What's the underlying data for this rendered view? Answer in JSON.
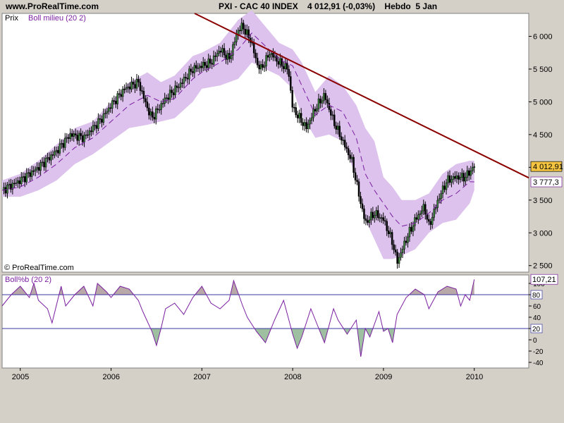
{
  "header": {
    "site": "www.ProRealTime.com",
    "title": "PXI - CAC 40 INDEX    4 012,91 (-0,03%)    Hebdo  5 Jan"
  },
  "colors": {
    "band": "#dcc2ec",
    "middle": "#7a1fa0",
    "trend": "#8b0000",
    "bbp": "#7a1fa0",
    "hline": "#3a3aa0",
    "fill_high": "#b8a8a8",
    "fill_low": "#9ec0a0"
  },
  "chart_data": [
    {
      "type": "candlestick",
      "panel": "price",
      "legend": [
        "Prix",
        "Boll milieu (20 2)"
      ],
      "watermark": "© ProRealTime.com",
      "x_ticks": [
        "2005",
        "2006",
        "2007",
        "2008",
        "2009",
        "2010"
      ],
      "x_range": [
        2004.8,
        2010.6
      ],
      "y_ticks": [
        "6 000",
        "5 500",
        "5 000",
        "4 500",
        "4 000",
        "3 500",
        "3 000",
        "2 500"
      ],
      "y_tick_values": [
        6000,
        5500,
        5000,
        4500,
        4000,
        3500,
        3000,
        2500
      ],
      "ylim": [
        2400,
        6350
      ],
      "last_price_label": "4 012,91",
      "middle_band_label": "3 777,3",
      "price_series": {
        "x": [
          2004.8,
          2005.0,
          2005.2,
          2005.4,
          2005.55,
          2005.7,
          2005.9,
          2006.0,
          2006.15,
          2006.3,
          2006.4,
          2006.45,
          2006.5,
          2006.6,
          2006.75,
          2006.9,
          2007.0,
          2007.1,
          2007.2,
          2007.3,
          2007.4,
          2007.45,
          2007.55,
          2007.6,
          2007.65,
          2007.75,
          2007.85,
          2007.95,
          2008.0,
          2008.05,
          2008.15,
          2008.25,
          2008.35,
          2008.45,
          2008.55,
          2008.65,
          2008.75,
          2008.8,
          2008.9,
          2009.0,
          2009.1,
          2009.15,
          2009.25,
          2009.35,
          2009.45,
          2009.5,
          2009.6,
          2009.7,
          2009.8,
          2009.9,
          2010.0
        ],
        "close": [
          3650,
          3800,
          4000,
          4250,
          4500,
          4450,
          4750,
          4950,
          5200,
          5300,
          4900,
          4750,
          4850,
          5050,
          5250,
          5500,
          5550,
          5600,
          5800,
          5650,
          6100,
          6150,
          5900,
          5600,
          5500,
          5750,
          5600,
          5500,
          4900,
          4800,
          4600,
          4900,
          5100,
          4700,
          4400,
          4100,
          3450,
          3150,
          3300,
          3200,
          2850,
          2550,
          2900,
          3200,
          3400,
          3100,
          3500,
          3800,
          3850,
          3850,
          4012.91
        ]
      },
      "bollinger": {
        "x": [
          2004.8,
          2005.0,
          2005.2,
          2005.4,
          2005.6,
          2005.8,
          2006.0,
          2006.2,
          2006.4,
          2006.55,
          2006.7,
          2006.9,
          2007.0,
          2007.2,
          2007.4,
          2007.55,
          2007.7,
          2007.85,
          2008.0,
          2008.1,
          2008.25,
          2008.4,
          2008.55,
          2008.7,
          2008.8,
          2008.9,
          2009.0,
          2009.1,
          2009.2,
          2009.35,
          2009.5,
          2009.65,
          2009.8,
          2009.95,
          2010.0
        ],
        "upper": [
          3800,
          3900,
          4100,
          4350,
          4600,
          4700,
          5000,
          5300,
          5450,
          5300,
          5400,
          5700,
          5750,
          5900,
          6250,
          6400,
          6150,
          5900,
          5800,
          5600,
          5150,
          5400,
          5250,
          4950,
          4600,
          4400,
          3850,
          3700,
          3500,
          3500,
          3600,
          3900,
          4050,
          4100,
          4100
        ],
        "middle": [
          3650,
          3700,
          3850,
          4050,
          4300,
          4450,
          4700,
          4950,
          5100,
          5000,
          5050,
          5350,
          5450,
          5600,
          5800,
          6050,
          5850,
          5650,
          5550,
          5250,
          4800,
          4950,
          4850,
          4450,
          3900,
          3650,
          3450,
          3250,
          3100,
          3150,
          3300,
          3500,
          3600,
          3780,
          3777.3
        ],
        "lower": [
          3550,
          3550,
          3650,
          3800,
          4050,
          4200,
          4400,
          4600,
          4650,
          4700,
          4750,
          5000,
          5200,
          5250,
          5350,
          5600,
          5500,
          5400,
          5200,
          4800,
          4450,
          4500,
          4400,
          3850,
          3200,
          2900,
          2600,
          2600,
          2650,
          2750,
          3000,
          3150,
          3200,
          3450,
          3650
        ]
      },
      "trendline": {
        "x": [
          2006.92,
          2010.6
        ],
        "y": [
          6350,
          3840
        ]
      }
    },
    {
      "type": "line",
      "panel": "indicator",
      "legend": "Boll%b (20 2)",
      "ylim": [
        -50,
        115
      ],
      "y_ticks": [
        "100",
        "80",
        "60",
        "40",
        "20",
        "0",
        "-20",
        "-40"
      ],
      "y_tick_values": [
        100,
        80,
        60,
        40,
        20,
        0,
        -20,
        -40
      ],
      "hlines": [
        80,
        20
      ],
      "hline_labels": [
        "80",
        "20"
      ],
      "last_value_label": "107,21",
      "x": [
        2004.8,
        2004.9,
        2005.0,
        2005.1,
        2005.15,
        2005.2,
        2005.3,
        2005.35,
        2005.45,
        2005.5,
        2005.6,
        2005.7,
        2005.8,
        2005.85,
        2005.95,
        2006.0,
        2006.1,
        2006.2,
        2006.3,
        2006.35,
        2006.45,
        2006.5,
        2006.55,
        2006.6,
        2006.7,
        2006.8,
        2006.9,
        2007.0,
        2007.1,
        2007.2,
        2007.3,
        2007.35,
        2007.45,
        2007.5,
        2007.6,
        2007.7,
        2007.8,
        2007.9,
        2008.0,
        2008.05,
        2008.1,
        2008.2,
        2008.3,
        2008.35,
        2008.45,
        2008.5,
        2008.6,
        2008.7,
        2008.75,
        2008.8,
        2008.85,
        2008.95,
        2009.0,
        2009.05,
        2009.1,
        2009.15,
        2009.25,
        2009.35,
        2009.45,
        2009.5,
        2009.6,
        2009.7,
        2009.8,
        2009.85,
        2009.9,
        2009.95,
        2010.0
      ],
      "values": [
        60,
        80,
        95,
        75,
        100,
        70,
        55,
        30,
        95,
        60,
        80,
        95,
        60,
        100,
        85,
        75,
        95,
        90,
        70,
        50,
        15,
        -10,
        20,
        55,
        65,
        45,
        75,
        95,
        65,
        55,
        70,
        105,
        60,
        40,
        15,
        -5,
        35,
        70,
        10,
        -15,
        5,
        55,
        15,
        -5,
        55,
        35,
        10,
        35,
        -30,
        20,
        5,
        50,
        15,
        20,
        -5,
        45,
        75,
        90,
        80,
        55,
        85,
        95,
        90,
        60,
        80,
        70,
        107.21
      ]
    }
  ]
}
